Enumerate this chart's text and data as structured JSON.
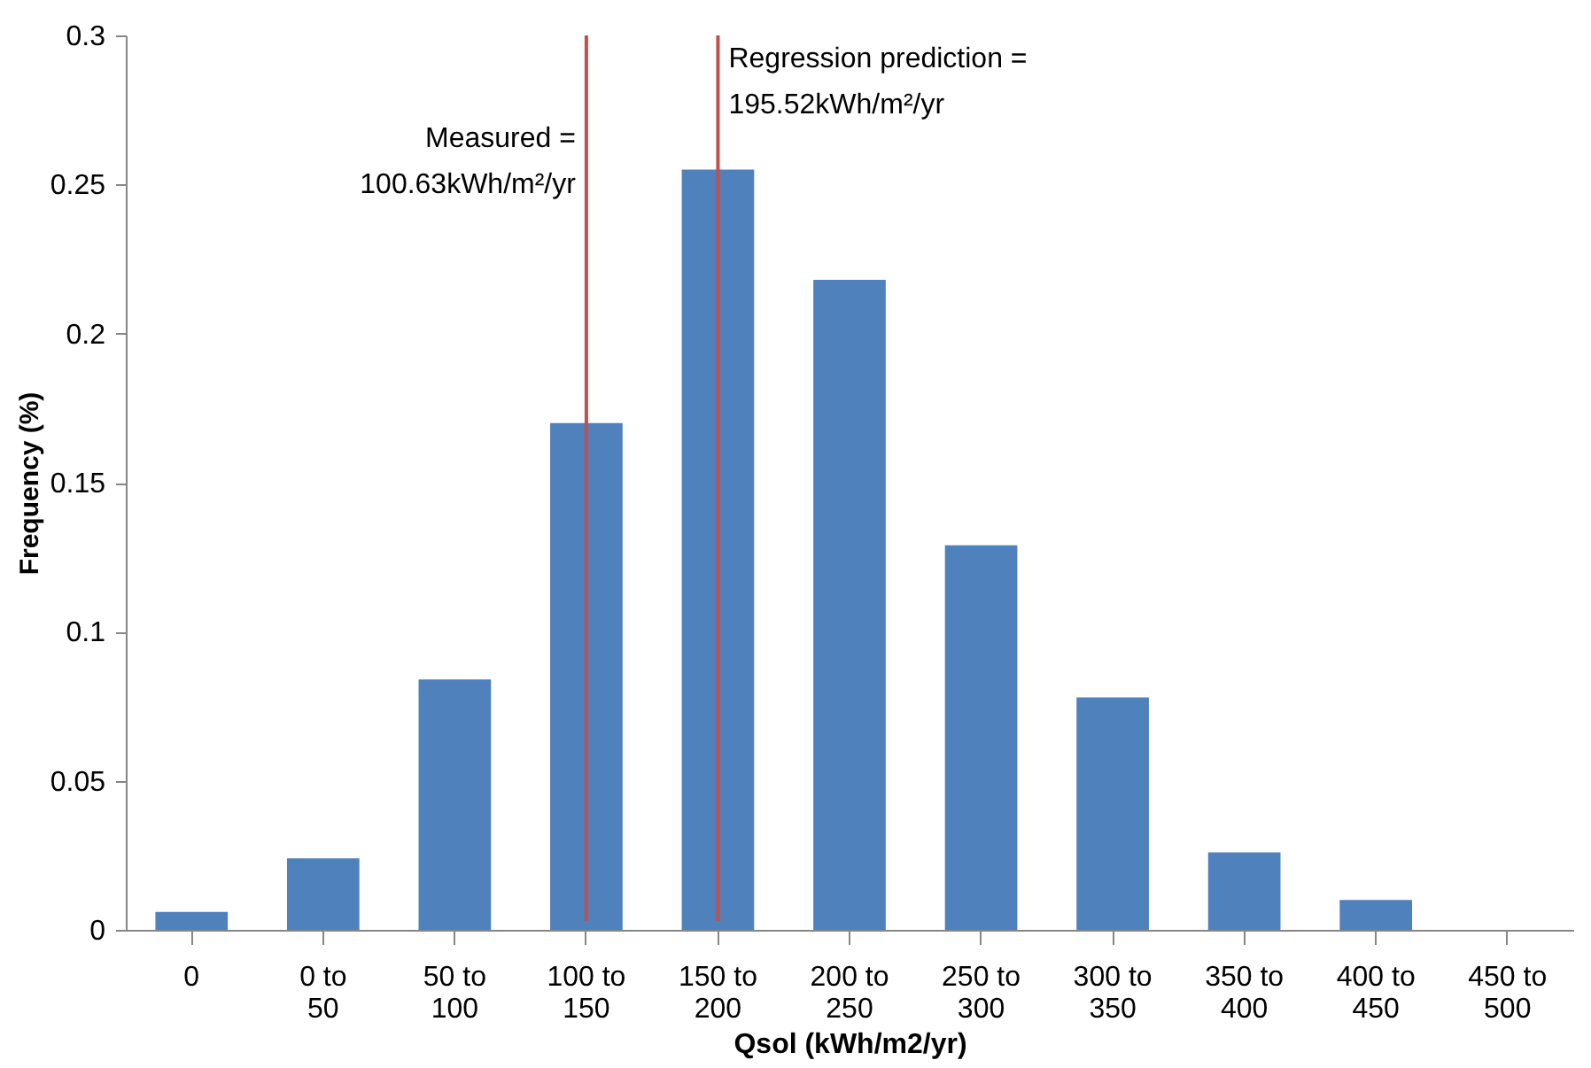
{
  "chart_data": {
    "type": "bar",
    "xlabel": "Qsol (kWh/m2/yr)",
    "ylabel": "Frequency (%)",
    "categories": [
      "0",
      "0 to 50",
      "50 to 100",
      "100 to 150",
      "150 to 200",
      "200 to 250",
      "250 to 300",
      "300 to 350",
      "350 to 400",
      "400 to 450",
      "450 to 500"
    ],
    "values": [
      0.006,
      0.024,
      0.084,
      0.17,
      0.255,
      0.218,
      0.129,
      0.078,
      0.026,
      0.01,
      0
    ],
    "color": "#4f81bd",
    "ylim": [
      0,
      0.3
    ],
    "yticks": [
      0,
      0.05,
      0.1,
      0.15,
      0.2,
      0.25,
      0.3
    ],
    "grid": false,
    "ref_lines": [
      {
        "axis": "x",
        "value": "100 to 150",
        "label": "Measured =\n100.63kWh/m²/yr",
        "color": "#c0504d"
      },
      {
        "axis": "x",
        "value": "150 to 200",
        "label": "Regression prediction =\n195.52kWh/m²/yr",
        "color": "#c0504d"
      }
    ]
  }
}
